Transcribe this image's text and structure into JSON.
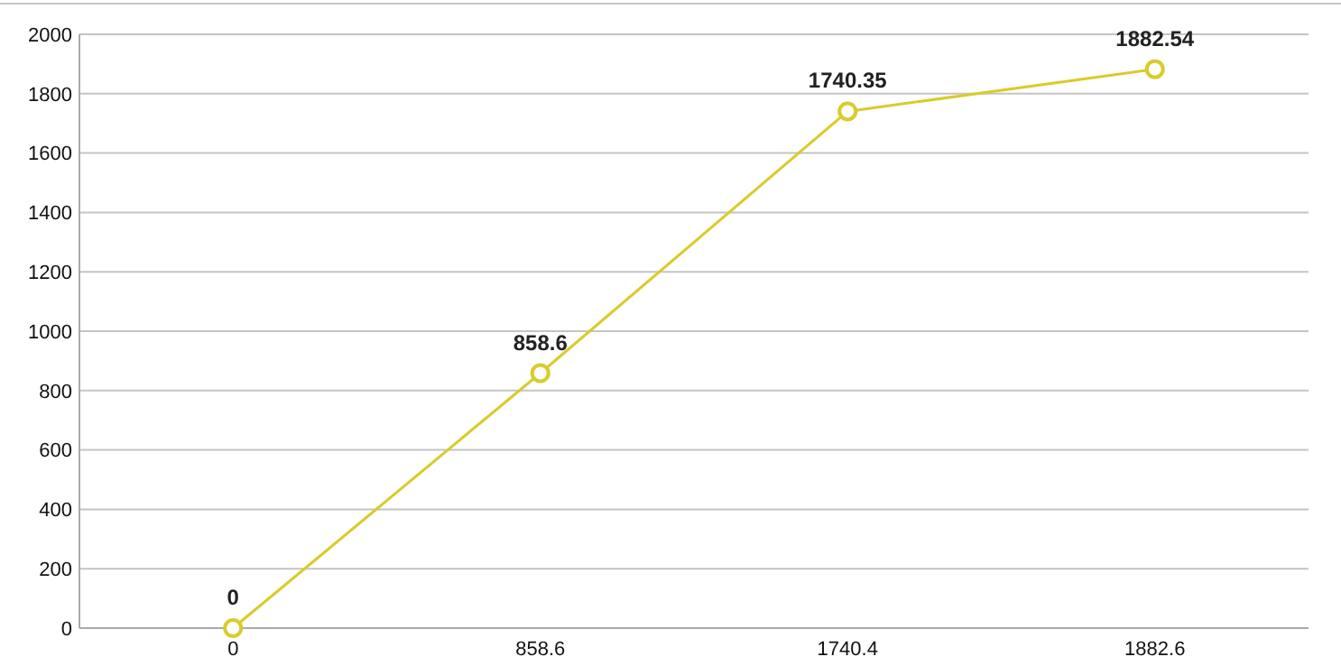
{
  "chart_data": {
    "type": "line",
    "categories": [
      "0",
      "858.6",
      "1740.4",
      "1882.6"
    ],
    "series": [
      {
        "color": "#d9cb2b",
        "values": [
          0,
          858.6,
          1740.35,
          1882.54
        ]
      }
    ],
    "ylim": [
      0,
      2000
    ],
    "yticks": [
      0,
      200,
      400,
      600,
      800,
      1000,
      1200,
      1400,
      1600,
      1800,
      2000
    ],
    "grid": "y",
    "marker": "circle",
    "data_labels": true
  }
}
